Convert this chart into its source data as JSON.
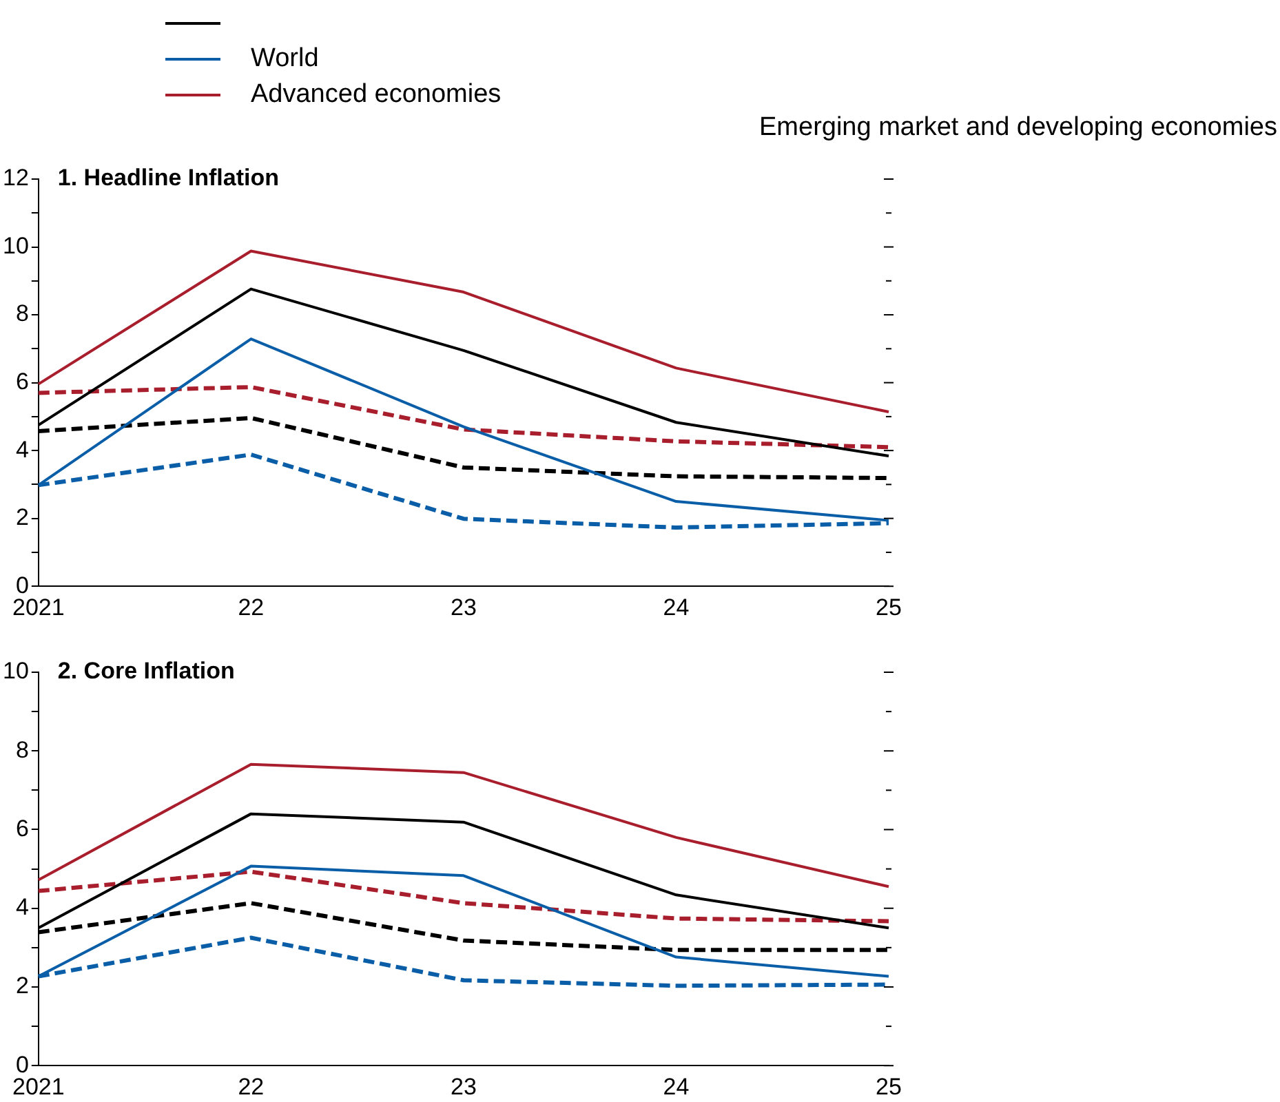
{
  "chart_data": [
    {
      "type": "line",
      "title": "1. Headline Inflation",
      "categories": [
        "2021",
        "22",
        "23",
        "24",
        "25"
      ],
      "legend": "top left",
      "annotations": [
        "Emerging market and developing economies"
      ],
      "ylim": [
        0,
        12
      ],
      "yticks": [
        0,
        {
          "value": 1,
          "label": null
        },
        2,
        {
          "value": 3,
          "label": null
        },
        4,
        {
          "value": 5,
          "label": null
        },
        6,
        {
          "value": 7,
          "label": null
        },
        8,
        {
          "value": 9,
          "label": null
        },
        10,
        {
          "value": 11,
          "label": null
        },
        12
      ],
      "grid": false,
      "marker": "none",
      "series": [
        {
          "color": "#000000",
          "line_style": "solid",
          "values": [
            4.75,
            8.76,
            6.95,
            4.83,
            3.84
          ]
        },
        {
          "name": "World",
          "color": "#0a5ea8",
          "line_style": "solid",
          "values": [
            2.98,
            7.29,
            4.7,
            2.5,
            1.94
          ]
        },
        {
          "name": "Advanced economies",
          "color": "#a91e2d",
          "line_style": "solid",
          "values": [
            5.96,
            9.88,
            8.67,
            6.43,
            5.14
          ]
        },
        {
          "color": "#000000",
          "line_style": "dashed",
          "values": [
            4.57,
            4.96,
            3.5,
            3.24,
            3.19
          ]
        },
        {
          "color": "#0a5ea8",
          "line_style": "dashed",
          "values": [
            2.98,
            3.88,
            1.99,
            1.73,
            1.86
          ]
        },
        {
          "color": "#a91e2d",
          "line_style": "dashed",
          "values": [
            5.7,
            5.87,
            4.62,
            4.27,
            4.1
          ]
        }
      ]
    },
    {
      "type": "line",
      "title": "2. Core Inflation",
      "categories": [
        "2021",
        "22",
        "23",
        "24",
        "25"
      ],
      "ylim": [
        0,
        10
      ],
      "yticks": [
        0,
        {
          "value": 1,
          "label": null
        },
        2,
        {
          "value": 3,
          "label": null
        },
        4,
        {
          "value": 5,
          "label": null
        },
        6,
        {
          "value": 7,
          "label": null
        },
        8,
        {
          "value": 9,
          "label": null
        },
        10
      ],
      "grid": false,
      "marker": "none",
      "series": [
        {
          "color": "#000000",
          "line_style": "solid",
          "values": [
            3.5,
            6.4,
            6.19,
            4.34,
            3.5
          ]
        },
        {
          "color": "#0a5ea8",
          "line_style": "solid",
          "values": [
            2.27,
            5.07,
            4.83,
            2.76,
            2.27
          ]
        },
        {
          "color": "#a91e2d",
          "line_style": "solid",
          "values": [
            4.72,
            7.66,
            7.45,
            5.8,
            4.55
          ]
        },
        {
          "color": "#000000",
          "line_style": "dashed",
          "values": [
            3.39,
            4.13,
            3.18,
            2.94,
            2.94
          ]
        },
        {
          "color": "#0a5ea8",
          "line_style": "dashed",
          "values": [
            2.27,
            3.25,
            2.17,
            2.03,
            2.06
          ]
        },
        {
          "color": "#a91e2d",
          "line_style": "dashed",
          "values": [
            4.44,
            4.93,
            4.13,
            3.74,
            3.67
          ]
        }
      ]
    }
  ]
}
